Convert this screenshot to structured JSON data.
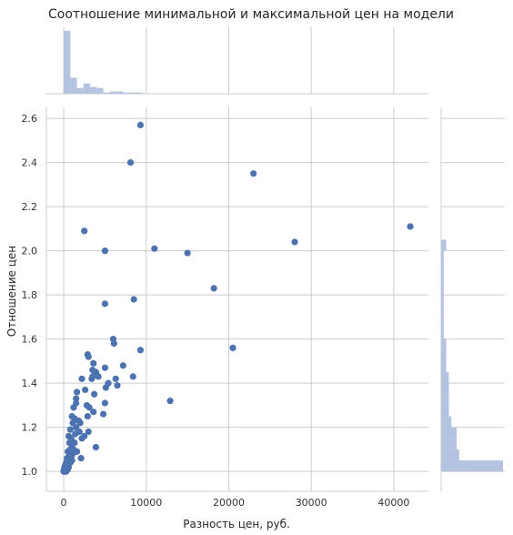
{
  "chart_data": {
    "type": "scatter",
    "title": "Соотношение минимальной и максимальной цен на модели",
    "xlabel": "Разность цен, руб.",
    "ylabel": "Отношение цен",
    "xlim": [
      -2100,
      44200
    ],
    "ylim": [
      0.91,
      2.65
    ],
    "xticks": [
      0,
      10000,
      20000,
      30000,
      40000
    ],
    "yticks": [
      1.0,
      1.2,
      1.4,
      1.6,
      1.8,
      2.0,
      2.2,
      2.4,
      2.6
    ],
    "grid": true,
    "marginal_histograms": true,
    "colors": {
      "points": "#4c72b0",
      "histogram": "#b3c3e0",
      "grid": "#cccccc"
    },
    "points": [
      [
        9300,
        2.57
      ],
      [
        8100,
        2.4
      ],
      [
        23000,
        2.35
      ],
      [
        2500,
        2.09
      ],
      [
        42000,
        2.11
      ],
      [
        5000,
        2.0
      ],
      [
        11000,
        2.01
      ],
      [
        15000,
        1.99
      ],
      [
        28000,
        2.04
      ],
      [
        18200,
        1.83
      ],
      [
        8500,
        1.78
      ],
      [
        5000,
        1.76
      ],
      [
        6000,
        1.6
      ],
      [
        6100,
        1.58
      ],
      [
        20500,
        1.56
      ],
      [
        9300,
        1.55
      ],
      [
        2900,
        1.53
      ],
      [
        3000,
        1.52
      ],
      [
        3600,
        1.49
      ],
      [
        7200,
        1.48
      ],
      [
        5000,
        1.47
      ],
      [
        3500,
        1.46
      ],
      [
        3900,
        1.45
      ],
      [
        3500,
        1.43
      ],
      [
        4200,
        1.43
      ],
      [
        8400,
        1.43
      ],
      [
        3400,
        1.42
      ],
      [
        6300,
        1.42
      ],
      [
        2200,
        1.42
      ],
      [
        5400,
        1.4
      ],
      [
        6500,
        1.39
      ],
      [
        5100,
        1.38
      ],
      [
        2600,
        1.37
      ],
      [
        1600,
        1.36
      ],
      [
        3700,
        1.35
      ],
      [
        12900,
        1.32
      ],
      [
        1500,
        1.33
      ],
      [
        5000,
        1.31
      ],
      [
        1500,
        1.31
      ],
      [
        2800,
        1.3
      ],
      [
        1200,
        1.29
      ],
      [
        3100,
        1.29
      ],
      [
        3600,
        1.27
      ],
      [
        4800,
        1.26
      ],
      [
        2900,
        1.25
      ],
      [
        1000,
        1.25
      ],
      [
        1300,
        1.24
      ],
      [
        1800,
        1.23
      ],
      [
        2000,
        1.22
      ],
      [
        1100,
        1.22
      ],
      [
        1500,
        1.2
      ],
      [
        800,
        1.19
      ],
      [
        1900,
        1.18
      ],
      [
        1400,
        1.17
      ],
      [
        3000,
        1.18
      ],
      [
        2500,
        1.16
      ],
      [
        600,
        1.16
      ],
      [
        900,
        1.15
      ],
      [
        2200,
        1.15
      ],
      [
        1300,
        1.13
      ],
      [
        700,
        1.13
      ],
      [
        1000,
        1.12
      ],
      [
        3900,
        1.11
      ],
      [
        1200,
        1.1
      ],
      [
        800,
        1.1
      ],
      [
        500,
        1.09
      ],
      [
        1600,
        1.09
      ],
      [
        1100,
        1.08
      ],
      [
        700,
        1.07
      ],
      [
        2100,
        1.06
      ],
      [
        900,
        1.06
      ],
      [
        400,
        1.06
      ],
      [
        600,
        1.05
      ],
      [
        1000,
        1.05
      ],
      [
        300,
        1.04
      ],
      [
        500,
        1.04
      ],
      [
        800,
        1.04
      ],
      [
        200,
        1.03
      ],
      [
        400,
        1.03
      ],
      [
        600,
        1.02
      ],
      [
        100,
        1.02
      ],
      [
        300,
        1.02
      ],
      [
        200,
        1.01
      ],
      [
        500,
        1.01
      ],
      [
        100,
        1.01
      ],
      [
        0,
        1.0
      ],
      [
        100,
        1.0
      ],
      [
        300,
        1.0
      ],
      [
        200,
        1.0
      ],
      [
        0,
        1.005
      ]
    ],
    "x_hist": {
      "bins": [
        0,
        800,
        1600,
        2400,
        3200,
        4000,
        4800,
        5600,
        6400,
        7200,
        8000,
        8800,
        9600
      ],
      "counts": [
        55,
        14,
        5,
        9,
        6,
        5,
        1,
        2,
        2,
        1,
        1,
        1
      ]
    },
    "y_hist": {
      "bins": [
        1.0,
        1.05,
        1.1,
        1.15,
        1.2,
        1.25,
        1.3,
        1.35,
        1.4,
        1.45,
        1.5,
        1.55,
        1.6,
        1.75,
        1.8,
        1.95,
        2.0,
        2.05
      ],
      "counts": [
        24,
        7,
        6,
        6,
        4,
        3,
        3,
        3,
        3,
        2,
        2,
        2,
        1,
        1,
        1,
        1,
        2
      ]
    }
  }
}
